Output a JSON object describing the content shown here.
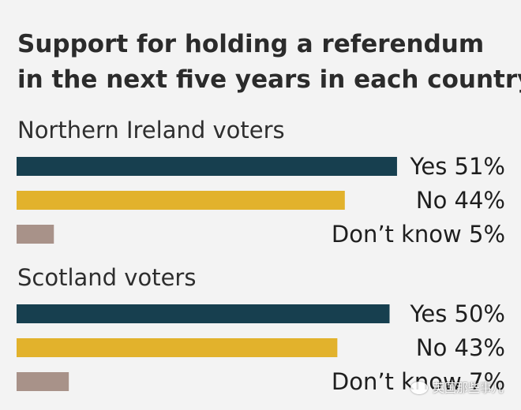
{
  "colors": {
    "yes": "#173f4f",
    "no": "#e2b22c",
    "dont_know": "#a89289",
    "background": "#f3f3f3"
  },
  "chart_data": {
    "type": "bar",
    "orientation": "horizontal",
    "title_line1": "Support for holding a referendum",
    "title_line2": "in the next five years in each country",
    "xlim": [
      0,
      55
    ],
    "grid": false,
    "groups": [
      {
        "label": "Northern Ireland voters",
        "bars": [
          {
            "category": "Yes",
            "value": 51,
            "label": "Yes 51%",
            "color": "#173f4f"
          },
          {
            "category": "No",
            "value": 44,
            "label": "No 44%",
            "color": "#e2b22c"
          },
          {
            "category": "Don’t know",
            "value": 5,
            "label": "Don’t know 5%",
            "color": "#a89289"
          }
        ]
      },
      {
        "label": "Scotland voters",
        "bars": [
          {
            "category": "Yes",
            "value": 50,
            "label": "Yes 50%",
            "color": "#173f4f"
          },
          {
            "category": "No",
            "value": 43,
            "label": "No 43%",
            "color": "#e2b22c"
          },
          {
            "category": "Don’t know",
            "value": 7,
            "label": "Don’t know 7%",
            "color": "#a89289"
          }
        ]
      }
    ]
  },
  "watermark": {
    "text": "英国那些事儿",
    "icon": "chat-bubble-icon"
  }
}
